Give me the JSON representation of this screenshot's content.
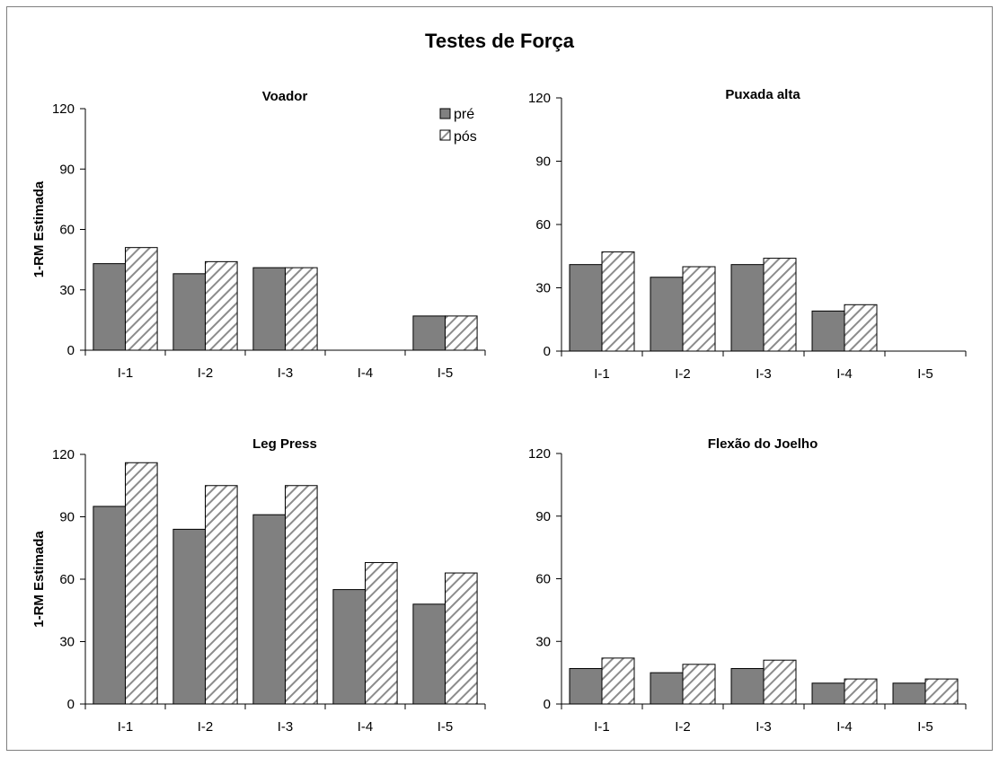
{
  "figure": {
    "title": "Testes de Força"
  },
  "colors": {
    "pre_fill": "#808080",
    "pos_fill": "#ffffff",
    "pos_hatch": "#8c8c8c",
    "axis": "#000000"
  },
  "legend": {
    "items": [
      "pré",
      "pós"
    ]
  },
  "chart_data": [
    {
      "type": "bar",
      "title": "Voador",
      "ylabel": "1-RM Estimada",
      "categories": [
        "I-1",
        "I-2",
        "I-3",
        "I-4",
        "I-5"
      ],
      "series": [
        {
          "name": "pré",
          "values": [
            43,
            38,
            41,
            0,
            17
          ]
        },
        {
          "name": "pós",
          "values": [
            51,
            44,
            41,
            0,
            17
          ]
        }
      ],
      "ylim": [
        0,
        120
      ],
      "yticks": [
        0,
        30,
        60,
        90,
        120
      ],
      "legend": "top-right"
    },
    {
      "type": "bar",
      "title": "Puxada alta",
      "ylabel": "",
      "categories": [
        "I-1",
        "I-2",
        "I-3",
        "I-4",
        "I-5"
      ],
      "series": [
        {
          "name": "pré",
          "values": [
            41,
            35,
            41,
            19,
            0
          ]
        },
        {
          "name": "pós",
          "values": [
            47,
            40,
            44,
            22,
            0
          ]
        }
      ],
      "ylim": [
        0,
        120
      ],
      "yticks": [
        0,
        30,
        60,
        90,
        120
      ]
    },
    {
      "type": "bar",
      "title": "Leg Press",
      "ylabel": "1-RM Estimada",
      "categories": [
        "I-1",
        "I-2",
        "I-3",
        "I-4",
        "I-5"
      ],
      "series": [
        {
          "name": "pré",
          "values": [
            95,
            84,
            91,
            55,
            48
          ]
        },
        {
          "name": "pós",
          "values": [
            116,
            105,
            105,
            68,
            63
          ]
        }
      ],
      "ylim": [
        0,
        120
      ],
      "yticks": [
        0,
        30,
        60,
        90,
        120
      ]
    },
    {
      "type": "bar",
      "title": "Flexão do Joelho",
      "ylabel": "",
      "categories": [
        "I-1",
        "I-2",
        "I-3",
        "I-4",
        "I-5"
      ],
      "series": [
        {
          "name": "pré",
          "values": [
            17,
            15,
            17,
            10,
            10
          ]
        },
        {
          "name": "pós",
          "values": [
            22,
            19,
            21,
            12,
            12
          ]
        }
      ],
      "ylim": [
        0,
        120
      ],
      "yticks": [
        0,
        30,
        60,
        90,
        120
      ]
    }
  ]
}
